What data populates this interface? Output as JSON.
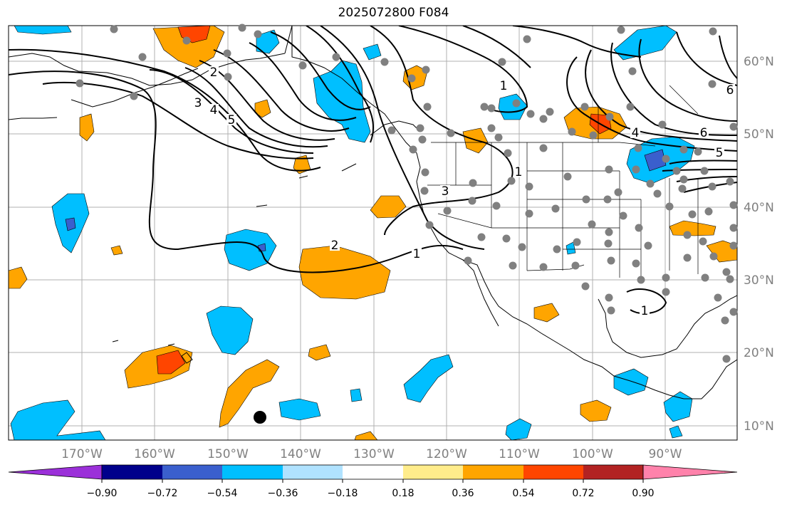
{
  "title": "2025072800 F084",
  "lon_labels": [
    "170°W",
    "160°W",
    "150°W",
    "140°W",
    "130°W",
    "120°W",
    "110°W",
    "100°W",
    "90°W"
  ],
  "lat_labels": [
    "60°N",
    "50°N",
    "40°N",
    "30°N",
    "20°N",
    "10°N"
  ],
  "colorbar": {
    "colors": [
      "#9b30d9",
      "#00008b",
      "#3a5fcd",
      "#00bfff",
      "#b0e2ff",
      "#ffffff",
      "#ffec8b",
      "#ffa500",
      "#ff4500",
      "#b22222",
      "#ff82ab"
    ],
    "tick_labels": [
      "−0.90",
      "−0.72",
      "−0.54",
      "−0.36",
      "−0.18",
      "0.18",
      "0.36",
      "0.54",
      "0.72",
      "0.90"
    ]
  },
  "contour_labels": [
    "1",
    "1",
    "1",
    "1",
    "2",
    "2",
    "3",
    "3",
    "4",
    "4",
    "5",
    "5",
    "6",
    "6"
  ],
  "marker": "storm-center-dot"
}
